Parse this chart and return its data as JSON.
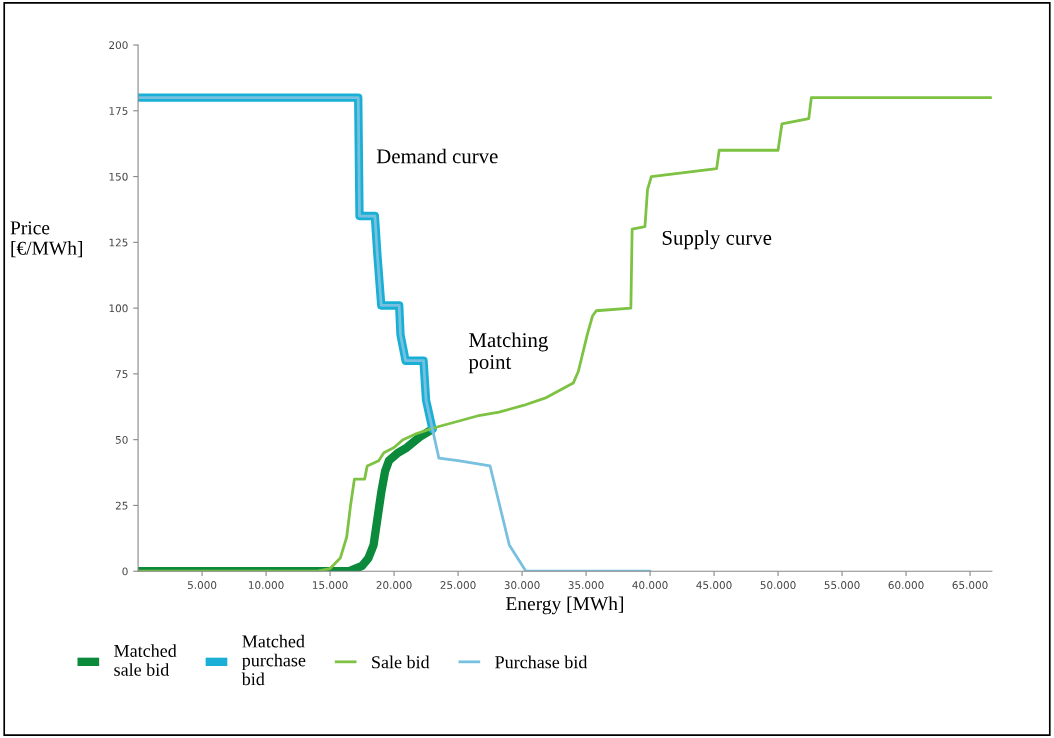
{
  "chart_data": {
    "type": "line",
    "xlabel": "Energy [MWh]",
    "ylabel": "Price\n[€/MWh]",
    "xlim": [
      0,
      66700
    ],
    "ylim": [
      0,
      200
    ],
    "xticks": [
      {
        "value": 5000,
        "label": "5.000"
      },
      {
        "value": 10000,
        "label": "10.000"
      },
      {
        "value": 15000,
        "label": "15.000"
      },
      {
        "value": 20000,
        "label": "20.000"
      },
      {
        "value": 25000,
        "label": "25.000"
      },
      {
        "value": 30000,
        "label": "30.000"
      },
      {
        "value": 35000,
        "label": "35.000"
      },
      {
        "value": 40000,
        "label": "40.000"
      },
      {
        "value": 45000,
        "label": "45.000"
      },
      {
        "value": 50000,
        "label": "50.000"
      },
      {
        "value": 55000,
        "label": "55.000"
      },
      {
        "value": 60000,
        "label": "60.000"
      },
      {
        "value": 65000,
        "label": "65.000"
      }
    ],
    "yticks": [
      0,
      25,
      50,
      75,
      100,
      125,
      150,
      175,
      200
    ],
    "grid": false,
    "legend": "bottom",
    "marker": "none",
    "line_style": "solid",
    "series": [
      {
        "name": "Matched\nsale bid",
        "color": "#0a8a3a",
        "x": [
          0,
          16500,
          17500,
          18000,
          18400,
          18700,
          19000,
          19300,
          19600,
          20300,
          21000,
          22000,
          23000
        ],
        "values": [
          0,
          0,
          2,
          5,
          10,
          20,
          30,
          38,
          42,
          45,
          47,
          51,
          54
        ]
      },
      {
        "name": "Matched\npurchase\nbid",
        "color": "#1ab0d6",
        "x": [
          0,
          17200,
          17300,
          18500,
          18700,
          19000,
          20400,
          20500,
          20900,
          22300,
          22500,
          23000
        ],
        "values": [
          180,
          180,
          135,
          135,
          120,
          101,
          101,
          90,
          80,
          80,
          65,
          54
        ]
      },
      {
        "name": "Sale bid",
        "color": "#7dc242",
        "x": [
          0,
          14000,
          15000,
          15800,
          16300,
          16600,
          16900,
          17700,
          17900,
          18800,
          19200,
          20000,
          20700,
          21600,
          22800,
          23500,
          25000,
          26500,
          28200,
          30100,
          31900,
          34000,
          34400,
          35100,
          35500,
          35800,
          38500,
          38600,
          39600,
          39800,
          40100,
          45200,
          45400,
          50000,
          50300,
          52400,
          52600,
          66700
        ],
        "values": [
          0,
          0,
          1,
          5,
          13,
          25,
          35,
          35,
          40,
          42,
          45,
          47,
          50,
          52,
          54,
          55,
          57,
          59,
          60.5,
          63,
          66,
          71.5,
          76,
          90,
          97,
          99,
          100,
          130,
          131,
          145,
          150,
          153,
          160,
          160,
          170,
          172,
          180,
          180
        ]
      },
      {
        "name": "Purchase bid",
        "color": "#78c0e0",
        "x": [
          0,
          17200,
          17300,
          18500,
          18700,
          19000,
          20400,
          20500,
          20900,
          22300,
          22500,
          23000,
          23500,
          25000,
          27500,
          28000,
          29000,
          30300,
          40000
        ],
        "values": [
          180,
          180,
          135,
          135,
          120,
          101,
          101,
          90,
          80,
          80,
          65,
          54,
          43,
          42,
          40,
          30,
          10,
          0,
          0
        ]
      }
    ],
    "annotations": [
      "Demand curve",
      "Matching\npoint",
      "Supply curve"
    ]
  }
}
